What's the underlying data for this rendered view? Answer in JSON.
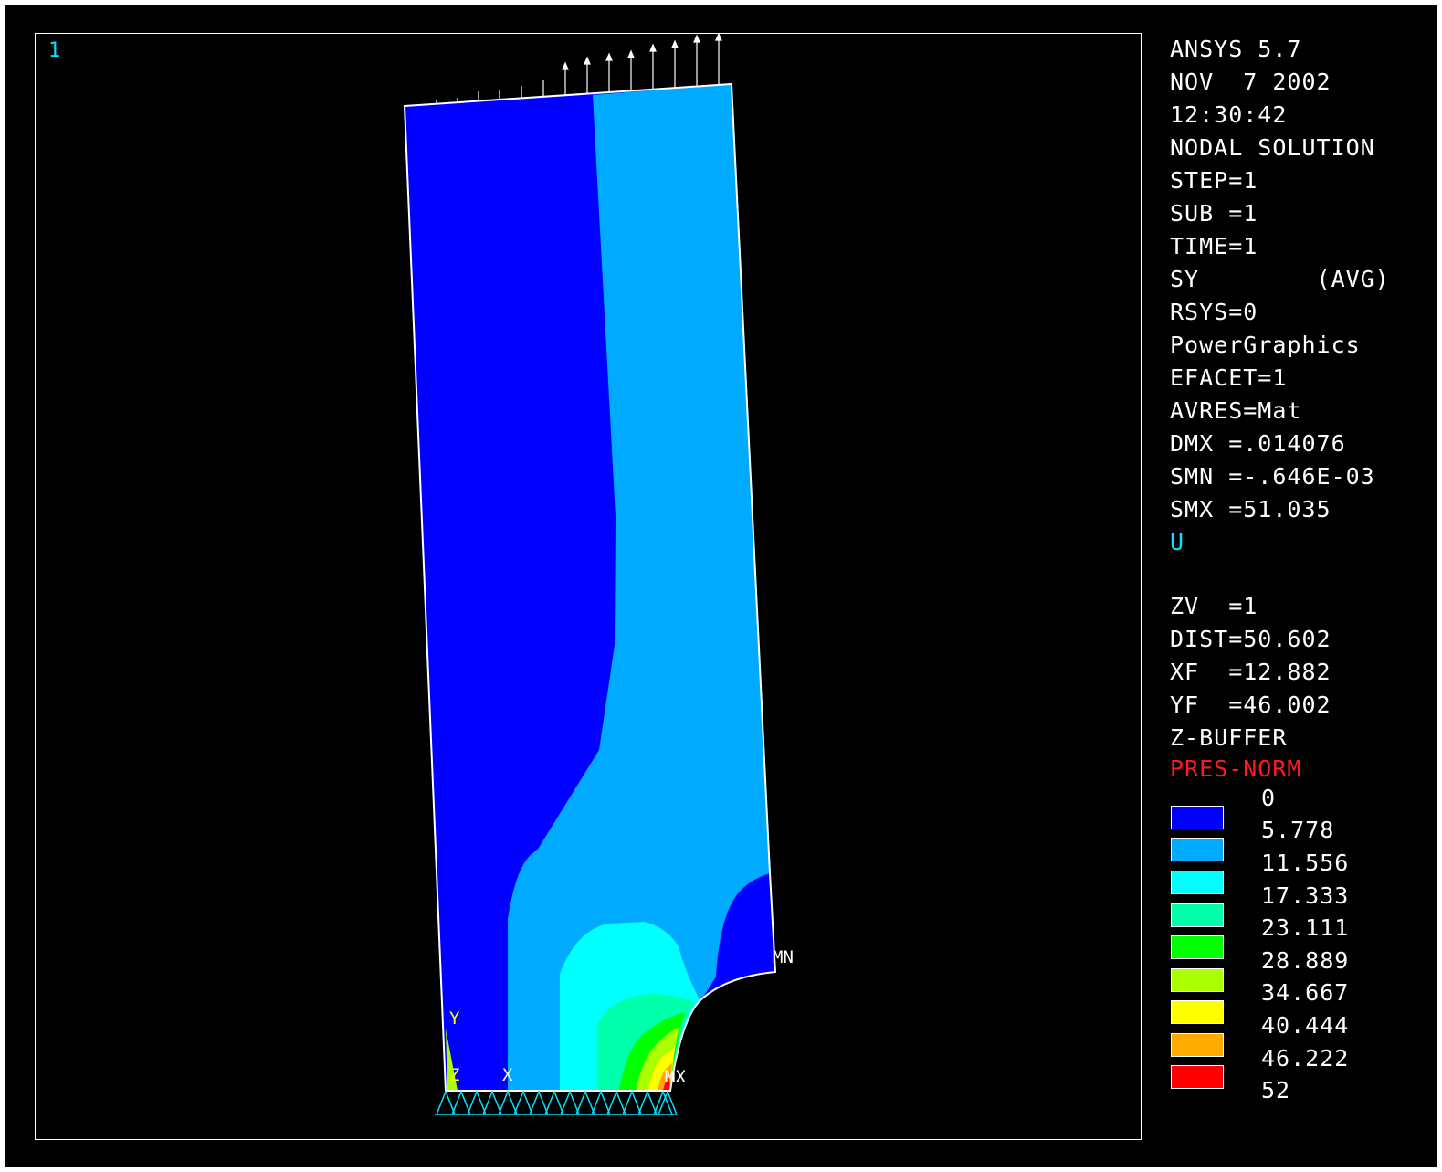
{
  "window": {
    "number": "1"
  },
  "header": [
    "ANSYS 5.7",
    "NOV  7 2002",
    "12:30:42",
    "NODAL SOLUTION",
    "STEP=1",
    "SUB =1",
    "TIME=1",
    "SY        (AVG)",
    "RSYS=0",
    "PowerGraphics",
    "EFACET=1",
    "AVRES=Mat",
    "DMX =.014076",
    "SMN =-.646E-03",
    "SMX =51.035"
  ],
  "triad_label": "U",
  "view_info": [
    "ZV  =1",
    "DIST=50.602",
    "XF  =12.882",
    "YF  =46.002",
    "Z-BUFFER"
  ],
  "load_label": "PRES-NORM",
  "legend": {
    "top_value": "0",
    "bands": [
      {
        "value": "5.778",
        "color": "#0000ff"
      },
      {
        "value": "11.556",
        "color": "#00aaff"
      },
      {
        "value": "17.333",
        "color": "#00ffff"
      },
      {
        "value": "23.111",
        "color": "#00ffaa"
      },
      {
        "value": "28.889",
        "color": "#00ff00"
      },
      {
        "value": "34.667",
        "color": "#aaff00"
      },
      {
        "value": "40.444",
        "color": "#ffff00"
      },
      {
        "value": "46.222",
        "color": "#ffaa00"
      },
      {
        "value": "52",
        "color": "#ff0000"
      }
    ]
  },
  "model_labels": {
    "min": "MN",
    "max": "MX",
    "axis_y": "Y",
    "axis_z": "Z",
    "axis_x": "X"
  },
  "colors": {
    "background": "#000000",
    "frame": "#ffffff",
    "band1": "#0000ff",
    "band2": "#00aaff",
    "band3": "#00ffff",
    "band4": "#00ffaa",
    "band5": "#00ff00",
    "band6": "#aaff00",
    "band7": "#ffff00",
    "band8": "#ffaa00",
    "band9": "#ff0000",
    "triad": "#00e5ff",
    "label_red": "#ff1a1a"
  }
}
